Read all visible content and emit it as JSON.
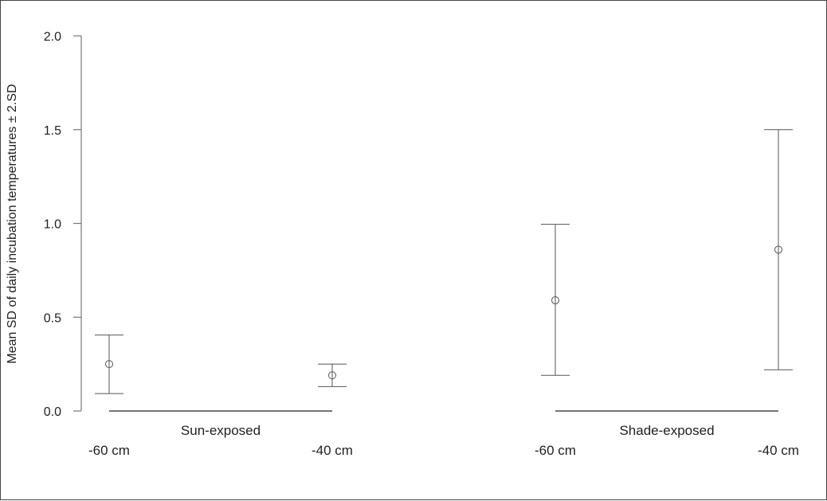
{
  "chart_data": {
    "type": "scatter",
    "title": "",
    "ylabel": "Mean SD of daily incubation temperatures ± 2.SD",
    "xlabel": "",
    "ylim": [
      0,
      2.0
    ],
    "yticks": [
      "0.0",
      "0.5",
      "1.0",
      "1.5",
      "2.0"
    ],
    "grid": false,
    "groups": [
      {
        "label": "Sun-exposed",
        "categories": [
          "-60 cm",
          "-40 cm"
        ]
      },
      {
        "label": "Shade-exposed",
        "categories": [
          "-60 cm",
          "-40 cm"
        ]
      }
    ],
    "points": [
      {
        "group": "Sun-exposed",
        "category": "-60 cm",
        "mean": 0.25,
        "lower": 0.093,
        "upper": 0.405
      },
      {
        "group": "Sun-exposed",
        "category": "-40 cm",
        "mean": 0.19,
        "lower": 0.13,
        "upper": 0.25
      },
      {
        "group": "Shade-exposed",
        "category": "-60 cm",
        "mean": 0.59,
        "lower": 0.19,
        "upper": 0.995
      },
      {
        "group": "Shade-exposed",
        "category": "-40 cm",
        "mean": 0.86,
        "lower": 0.22,
        "upper": 1.5
      }
    ],
    "colors": {
      "marks": "#555555",
      "axis": "#777777"
    }
  }
}
